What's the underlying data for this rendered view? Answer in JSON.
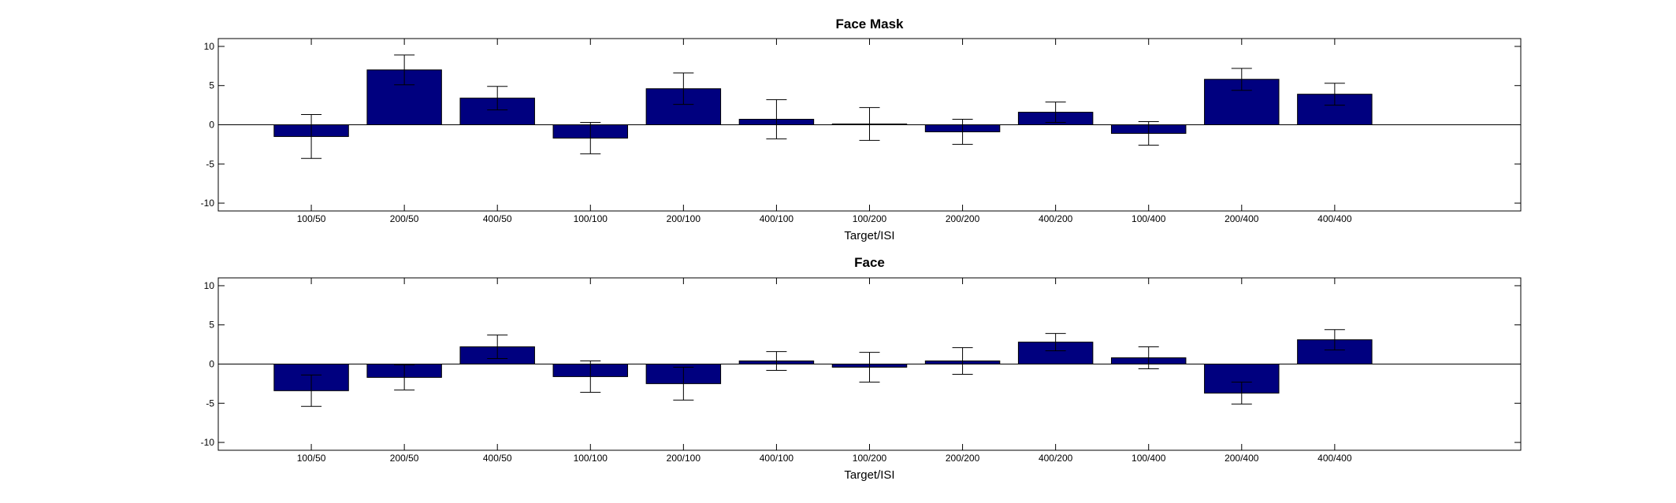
{
  "chart_data": [
    {
      "type": "bar",
      "title": "Face Mask",
      "xlabel": "Target/ISI",
      "ylabel": "",
      "ylim": [
        -11,
        11
      ],
      "yticks": [
        -10,
        -5,
        0,
        5,
        10
      ],
      "xlim": [
        0,
        14
      ],
      "grid": false,
      "bar_color": "#00007f",
      "categories": [
        "100/50",
        "200/50",
        "400/50",
        "100/100",
        "200/100",
        "400/100",
        "100/200",
        "200/200",
        "400/200",
        "100/400",
        "200/400",
        "400/400"
      ],
      "values": [
        -1.5,
        7.0,
        3.4,
        -1.7,
        4.6,
        0.7,
        0.1,
        -0.9,
        1.6,
        -1.1,
        5.8,
        3.9
      ],
      "error": [
        2.8,
        1.9,
        1.5,
        2.0,
        2.0,
        2.5,
        2.1,
        1.6,
        1.3,
        1.5,
        1.4,
        1.4
      ]
    },
    {
      "type": "bar",
      "title": "Face",
      "xlabel": "Target/ISI",
      "ylabel": "",
      "ylim": [
        -11,
        11
      ],
      "yticks": [
        -10,
        -5,
        0,
        5,
        10
      ],
      "xlim": [
        0,
        14
      ],
      "grid": false,
      "bar_color": "#00007f",
      "categories": [
        "100/50",
        "200/50",
        "400/50",
        "100/100",
        "200/100",
        "400/100",
        "100/200",
        "200/200",
        "400/200",
        "100/400",
        "200/400",
        "400/400"
      ],
      "values": [
        -3.4,
        -1.7,
        2.2,
        -1.6,
        -2.5,
        0.4,
        -0.4,
        0.4,
        2.8,
        0.8,
        -3.7,
        3.1
      ],
      "error": [
        2.0,
        1.6,
        1.5,
        2.0,
        2.1,
        1.2,
        1.9,
        1.7,
        1.1,
        1.4,
        1.4,
        1.3
      ]
    }
  ]
}
